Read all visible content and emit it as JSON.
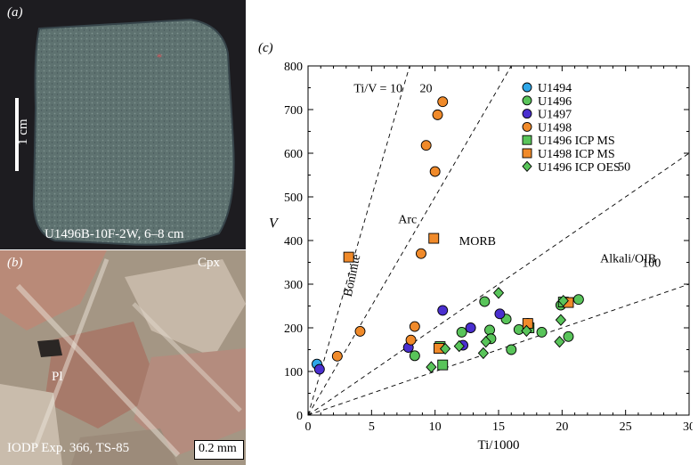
{
  "panel_a": {
    "label": "(a)",
    "scale_label": "1 cm",
    "caption": "U1496B-10F-2W, 6–8 cm"
  },
  "panel_b": {
    "label": "(b)",
    "mineral_1": "Cpx",
    "mineral_2": "Pl",
    "caption": "IODP Exp. 366, TS-85",
    "scale_label": "0.2 mm"
  },
  "chart_data": {
    "type": "scatter",
    "panel_label": "(c)",
    "xlabel": "Ti/1000",
    "ylabel": "V",
    "xlim": [
      0,
      30
    ],
    "ylim": [
      0,
      800
    ],
    "xticks": [
      0,
      5,
      10,
      15,
      20,
      25,
      30
    ],
    "yticks": [
      0,
      100,
      200,
      300,
      400,
      500,
      600,
      700,
      800
    ],
    "grid": false,
    "legend_position": "top-right",
    "reference_lines": [
      {
        "label": "Ti/V = 10",
        "ratio": 10
      },
      {
        "label": "20",
        "ratio": 20
      },
      {
        "label": "50",
        "ratio": 50
      },
      {
        "label": "100",
        "ratio": 100
      }
    ],
    "field_labels": [
      "Boninite",
      "Arc",
      "MORB",
      "Alkali/OIB"
    ],
    "series": [
      {
        "name": "U1494",
        "marker": "circle",
        "color": "#2fa7e8",
        "points": [
          [
            0.7,
            117
          ]
        ]
      },
      {
        "name": "U1496",
        "marker": "circle",
        "color": "#59c45a",
        "points": [
          [
            8.4,
            136
          ],
          [
            12.1,
            190
          ],
          [
            13.9,
            260
          ],
          [
            14.3,
            195
          ],
          [
            14.4,
            175
          ],
          [
            15.6,
            220
          ],
          [
            16.0,
            150
          ],
          [
            16.6,
            196
          ],
          [
            17.3,
            210
          ],
          [
            18.4,
            190
          ],
          [
            19.9,
            252
          ],
          [
            20.5,
            180
          ],
          [
            21.3,
            265
          ]
        ]
      },
      {
        "name": "U1497",
        "marker": "circle",
        "color": "#4a2fcf",
        "points": [
          [
            0.9,
            105
          ],
          [
            7.9,
            155
          ],
          [
            10.6,
            240
          ],
          [
            12.2,
            160
          ],
          [
            12.8,
            200
          ],
          [
            15.1,
            232
          ]
        ]
      },
      {
        "name": "U1498",
        "marker": "circle",
        "color": "#f08a2a",
        "points": [
          [
            2.3,
            135
          ],
          [
            4.1,
            192
          ],
          [
            8.1,
            172
          ],
          [
            8.4,
            203
          ],
          [
            8.9,
            370
          ],
          [
            9.3,
            618
          ],
          [
            10.0,
            558
          ],
          [
            10.2,
            688
          ],
          [
            10.6,
            718
          ]
        ]
      },
      {
        "name": "U1496 ICP MS",
        "marker": "square",
        "color": "#59c45a",
        "points": [
          [
            10.4,
            157
          ],
          [
            10.6,
            115
          ],
          [
            17.4,
            200
          ],
          [
            20.1,
            259
          ]
        ]
      },
      {
        "name": "U1498 ICP MS",
        "marker": "square",
        "color": "#f08a2a",
        "points": [
          [
            3.2,
            362
          ],
          [
            9.9,
            405
          ],
          [
            10.3,
            153
          ],
          [
            17.3,
            210
          ],
          [
            20.5,
            258
          ]
        ]
      },
      {
        "name": "U1496 ICP OES",
        "marker": "diamond",
        "color": "#59c45a",
        "points": [
          [
            9.7,
            110
          ],
          [
            10.8,
            152
          ],
          [
            11.9,
            158
          ],
          [
            13.8,
            142
          ],
          [
            14.0,
            168
          ],
          [
            15.0,
            280
          ],
          [
            17.2,
            193
          ],
          [
            19.8,
            168
          ],
          [
            19.9,
            218
          ],
          [
            20.1,
            262
          ]
        ]
      }
    ]
  }
}
